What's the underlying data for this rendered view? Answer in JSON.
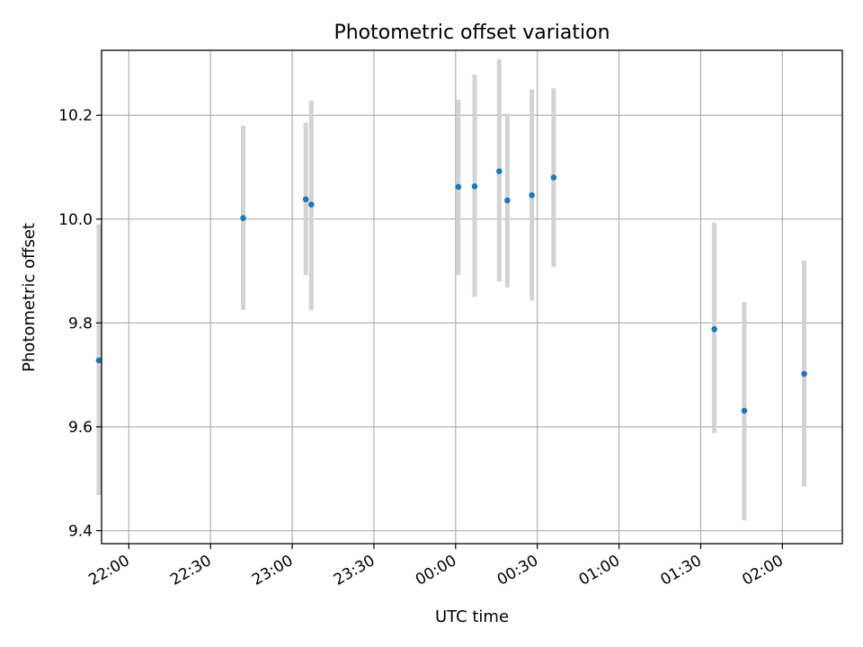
{
  "chart_data": {
    "type": "scatter",
    "title": "Photometric offset variation",
    "xlabel": "UTC time",
    "ylabel": "Photometric offset",
    "x_type": "time",
    "xlim": [
      "21:50",
      "02:22"
    ],
    "ylim": [
      9.375,
      10.325
    ],
    "x_ticks": [
      "22:00",
      "22:30",
      "23:00",
      "23:30",
      "00:00",
      "00:30",
      "01:00",
      "01:30",
      "02:00"
    ],
    "y_ticks": [
      "9.4",
      "9.6",
      "9.8",
      "10.0",
      "10.2"
    ],
    "grid": true,
    "legend": "none",
    "series": [
      {
        "color": "#1f77b4",
        "error_color": "#d3d3d3",
        "points": [
          {
            "x": "21:49",
            "y": 9.728,
            "lo": 9.468,
            "hi": 9.99
          },
          {
            "x": "22:42",
            "y": 10.002,
            "lo": 9.825,
            "hi": 10.18
          },
          {
            "x": "23:05",
            "y": 10.038,
            "lo": 9.892,
            "hi": 10.186
          },
          {
            "x": "23:07",
            "y": 10.028,
            "lo": 9.825,
            "hi": 10.228
          },
          {
            "x": "00:01",
            "y": 10.062,
            "lo": 9.892,
            "hi": 10.23
          },
          {
            "x": "00:07",
            "y": 10.063,
            "lo": 9.85,
            "hi": 10.278
          },
          {
            "x": "00:16",
            "y": 10.092,
            "lo": 9.88,
            "hi": 10.308
          },
          {
            "x": "00:19",
            "y": 10.036,
            "lo": 9.868,
            "hi": 10.203
          },
          {
            "x": "00:28",
            "y": 10.046,
            "lo": 9.843,
            "hi": 10.25
          },
          {
            "x": "00:36",
            "y": 10.08,
            "lo": 9.908,
            "hi": 10.252
          },
          {
            "x": "01:35",
            "y": 9.788,
            "lo": 9.588,
            "hi": 9.993
          },
          {
            "x": "01:46",
            "y": 9.631,
            "lo": 9.42,
            "hi": 9.84
          },
          {
            "x": "02:08",
            "y": 9.702,
            "lo": 9.485,
            "hi": 9.92
          }
        ]
      }
    ]
  }
}
